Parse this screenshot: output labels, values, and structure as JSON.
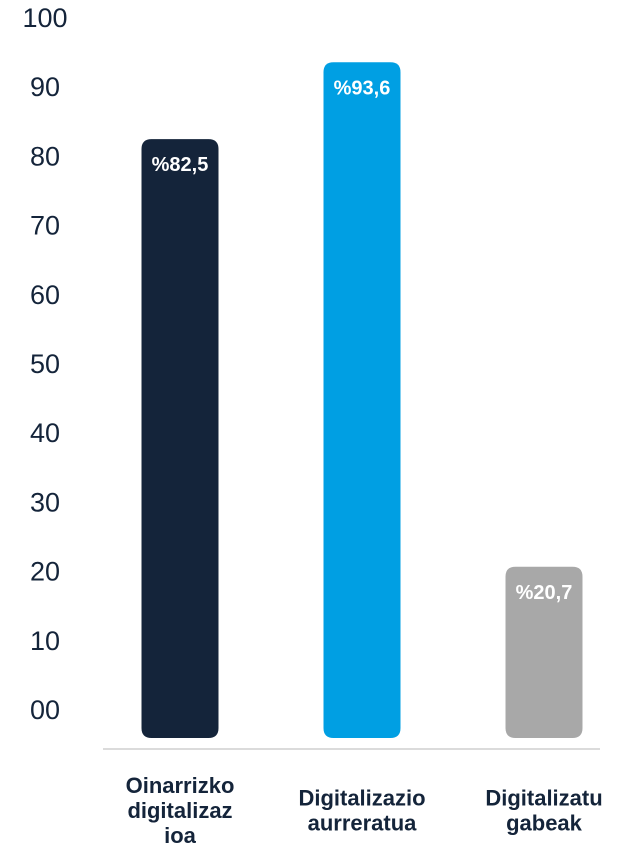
{
  "chart_data": {
    "type": "bar",
    "title": "",
    "xlabel": "",
    "ylabel": "",
    "ylim": [
      0,
      100
    ],
    "y_ticks": [
      "00",
      "10",
      "20",
      "30",
      "40",
      "50",
      "60",
      "70",
      "80",
      "90",
      "100"
    ],
    "grid": false,
    "categories": [
      [
        "Oinarrizko",
        "digitalizaz",
        "ioa"
      ],
      [
        "Digitalizazio",
        "aurreratua"
      ],
      [
        "Digitalizatu",
        "gabeak"
      ]
    ],
    "values": [
      82.5,
      93.6,
      20.7
    ],
    "data_labels": [
      "%82,5",
      "%93,6",
      "%20,7"
    ],
    "colors": [
      "#14243a",
      "#009fe3",
      "#a8a8a8"
    ],
    "axis_color": "#cfcfcf",
    "text_color": "#14243a",
    "label_color": "#ffffff"
  }
}
